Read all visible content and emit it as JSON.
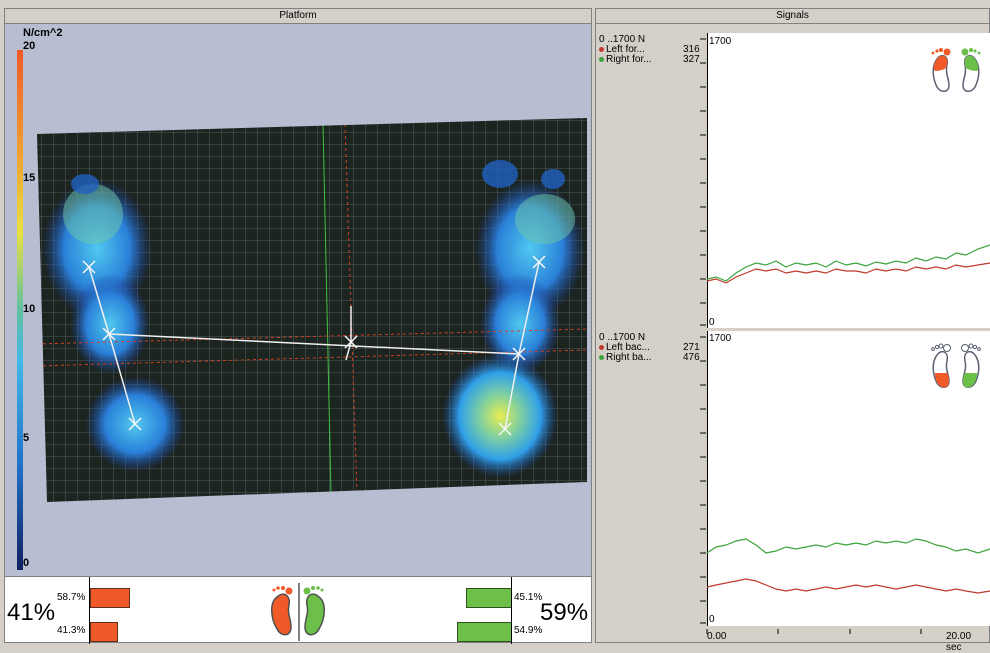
{
  "platform": {
    "title": "Platform",
    "unit": "N/cm^2",
    "scale": [
      "20",
      "15",
      "10",
      "5",
      "0"
    ]
  },
  "signals": {
    "title": "Signals",
    "top": {
      "range": "0 ..1700 N",
      "max_label": "1700",
      "min_label": "0",
      "rows": [
        {
          "label": "Left for...",
          "value": "316",
          "color": "#c0392b"
        },
        {
          "label": "Right for...",
          "value": "327",
          "color": "#3aa33a"
        }
      ]
    },
    "bottom": {
      "range": "0 ..1700 N",
      "max_label": "1700",
      "min_label": "0",
      "rows": [
        {
          "label": "Left bac...",
          "value": "271",
          "color": "#c0392b"
        },
        {
          "label": "Right ba...",
          "value": "476",
          "color": "#3aa33a"
        }
      ]
    },
    "time_start": "0.00",
    "time_end": "20.00 sec"
  },
  "balance": {
    "left_total": "41%",
    "right_total": "59%",
    "left_front": "58.7%",
    "left_back": "41.3%",
    "right_front": "45.1%",
    "right_back": "54.9%",
    "left_color": "#f05a28",
    "right_color": "#6cc04a"
  }
}
